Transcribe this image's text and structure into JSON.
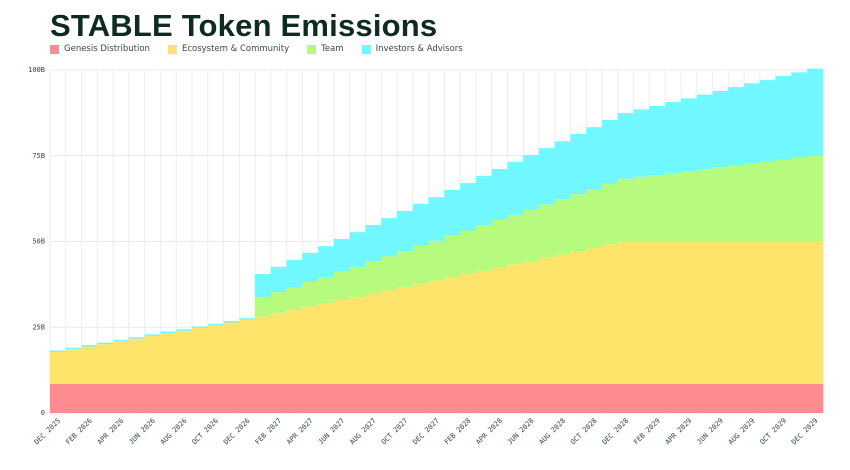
{
  "title": "STABLE Token Emissions",
  "colors": {
    "Genesis Distribution": "#ff8a8f",
    "Ecosystem & Community": "#ffe46b",
    "Team": "#b6fb7d",
    "Investors & Advisors": "#70f7ff",
    "title": "#0f2a20"
  },
  "chart_data": {
    "type": "area",
    "stacked": true,
    "step": true,
    "title": "STABLE Token Emissions",
    "xlabel": "",
    "ylabel": "",
    "ylim": [
      0,
      100
    ],
    "y_unit": "B",
    "y_ticks": [
      "0",
      "25B",
      "50B",
      "75B",
      "100B"
    ],
    "grid": "vertical per month, horizontal at y ticks",
    "legend": "top-left",
    "categories": [
      "DEC 2025",
      "JAN 2026",
      "FEB 2026",
      "MAR 2026",
      "APR 2026",
      "MAY 2026",
      "JUN 2026",
      "JUL 2026",
      "AUG 2026",
      "SEP 2026",
      "OCT 2026",
      "NOV 2026",
      "DEC 2026",
      "JAN 2027",
      "FEB 2027",
      "MAR 2027",
      "APR 2027",
      "MAY 2027",
      "JUN 2027",
      "JUL 2027",
      "AUG 2027",
      "SEP 2027",
      "OCT 2027",
      "NOV 2027",
      "DEC 2027",
      "JAN 2028",
      "FEB 2028",
      "MAR 2028",
      "APR 2028",
      "MAY 2028",
      "JUN 2028",
      "JUL 2028",
      "AUG 2028",
      "SEP 2028",
      "OCT 2028",
      "NOV 2028",
      "DEC 2028",
      "JAN 2029",
      "FEB 2029",
      "MAR 2029",
      "APR 2029",
      "MAY 2029",
      "JUN 2029",
      "JUL 2029",
      "AUG 2029",
      "SEP 2029",
      "OCT 2029",
      "NOV 2029",
      "DEC 2029"
    ],
    "x_tick_labels": [
      "DEC 2025",
      "FEB 2026",
      "APR 2026",
      "JUN 2026",
      "AUG 2026",
      "OCT 2026",
      "DEC 2026",
      "FEB 2027",
      "APR 2027",
      "JUN 2027",
      "AUG 2027",
      "OCT 2027",
      "DEC 2027",
      "FEB 2028",
      "APR 2028",
      "JUN 2028",
      "AUG 2028",
      "OCT 2028",
      "DEC 2028",
      "FEB 2029",
      "APR 2029",
      "JUN 2029",
      "AUG 2029",
      "OCT 2029",
      "DEC 2029"
    ],
    "series": [
      {
        "name": "Genesis Distribution",
        "values": [
          8.5,
          8.5,
          8.5,
          8.5,
          8.5,
          8.5,
          8.5,
          8.5,
          8.5,
          8.5,
          8.5,
          8.5,
          8.5,
          8.5,
          8.5,
          8.5,
          8.5,
          8.5,
          8.5,
          8.5,
          8.5,
          8.5,
          8.5,
          8.5,
          8.5,
          8.5,
          8.5,
          8.5,
          8.5,
          8.5,
          8.5,
          8.5,
          8.5,
          8.5,
          8.5,
          8.5,
          8.5,
          8.5,
          8.5,
          8.5,
          8.5,
          8.5,
          8.5,
          8.5,
          8.5,
          8.5,
          8.5,
          8.5,
          8.5
        ]
      },
      {
        "name": "Ecosystem & Community",
        "values": [
          9.3,
          10.1,
          10.9,
          11.6,
          12.4,
          13.2,
          14.0,
          14.8,
          15.5,
          16.3,
          17.1,
          17.9,
          18.7,
          19.6,
          20.6,
          21.5,
          22.5,
          23.4,
          24.4,
          25.3,
          26.3,
          27.2,
          28.2,
          29.2,
          30.1,
          31.1,
          32.0,
          33.0,
          33.9,
          34.9,
          35.8,
          36.8,
          37.7,
          38.7,
          39.6,
          40.6,
          41.5,
          41.5,
          41.5,
          41.5,
          41.5,
          41.5,
          41.5,
          41.5,
          41.5,
          41.5,
          41.5,
          41.5,
          41.5
        ]
      },
      {
        "name": "Team",
        "values": [
          0,
          0,
          0,
          0,
          0,
          0,
          0,
          0,
          0,
          0,
          0,
          0,
          0,
          5.5,
          6.1,
          6.6,
          7.2,
          7.7,
          8.3,
          8.8,
          9.4,
          10.0,
          10.5,
          11.1,
          11.6,
          12.2,
          12.7,
          13.3,
          13.9,
          14.4,
          15.0,
          15.5,
          16.1,
          16.6,
          17.2,
          17.8,
          18.3,
          18.9,
          19.4,
          20.0,
          20.5,
          21.1,
          21.7,
          22.2,
          22.8,
          23.3,
          23.9,
          24.4,
          25.0
        ]
      },
      {
        "name": "Investors & Advisors",
        "values": [
          0,
          0,
          0,
          0,
          0,
          0,
          0,
          0,
          0,
          0,
          0,
          0,
          0,
          6.5,
          7.0,
          7.6,
          8.1,
          8.6,
          9.1,
          9.7,
          10.2,
          10.7,
          11.3,
          11.8,
          12.3,
          12.8,
          13.4,
          13.9,
          14.4,
          15.0,
          15.5,
          16.0,
          16.5,
          17.1,
          17.6,
          18.1,
          18.7,
          19.2,
          19.7,
          20.2,
          20.8,
          21.3,
          21.8,
          22.4,
          22.9,
          23.4,
          23.9,
          24.5,
          25.0
        ]
      }
    ]
  }
}
